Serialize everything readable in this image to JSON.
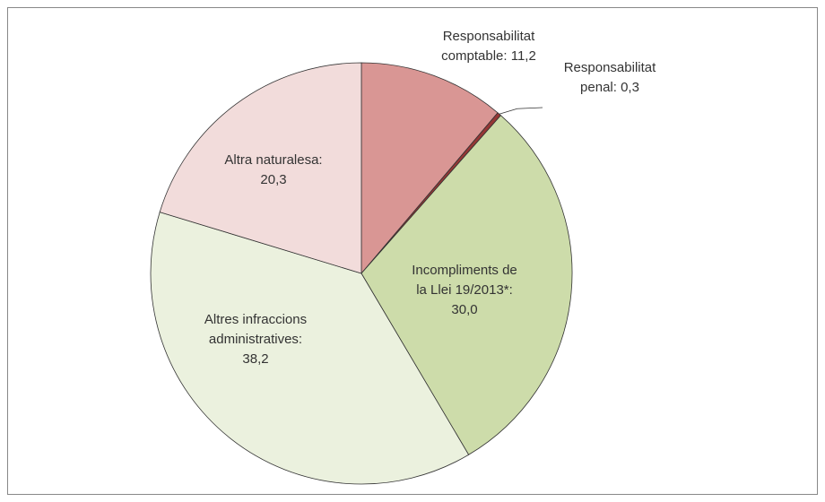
{
  "chart_data": {
    "type": "pie",
    "categories": [
      [
        "Responsabilitat",
        "comptable:"
      ],
      [
        "Responsabilitat",
        "penal:"
      ],
      [
        "Incompliments de",
        "la Llei 19/2013*:"
      ],
      [
        "Altres infraccions",
        "administratives:"
      ],
      [
        "Altra naturalesa:"
      ]
    ],
    "values": [
      11.2,
      0.3,
      30.0,
      38.2,
      20.3
    ],
    "value_labels": [
      "11,2",
      "0,3",
      "30,0",
      "38,2",
      "20,3"
    ],
    "colors": [
      "#d99694",
      "#953735",
      "#cddcaa",
      "#ebf1de",
      "#f2dcdb"
    ]
  }
}
